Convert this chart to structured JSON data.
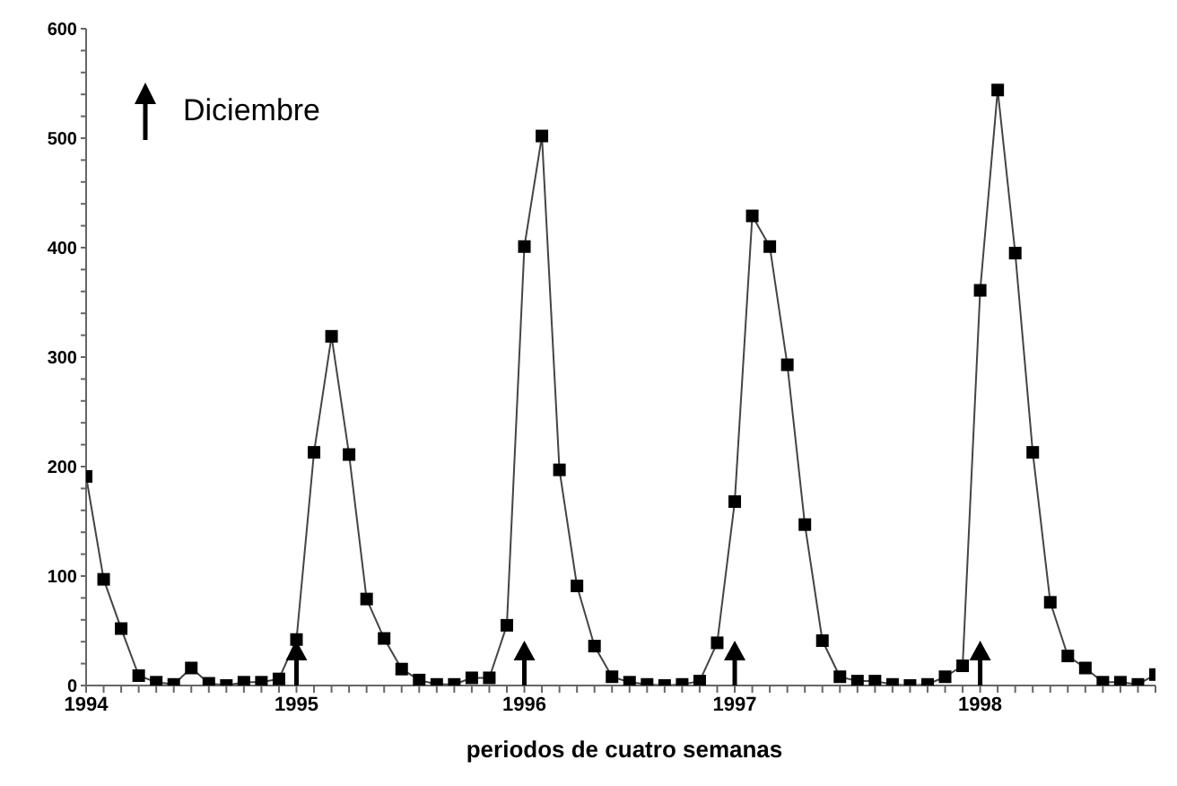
{
  "chart_data": {
    "type": "line",
    "xlabel": "periodos de cuatro semanas",
    "categories": [
      "1994",
      null,
      null,
      null,
      null,
      null,
      null,
      null,
      null,
      null,
      null,
      null,
      "1995",
      null,
      null,
      null,
      null,
      null,
      null,
      null,
      null,
      null,
      null,
      null,
      null,
      "1996",
      null,
      null,
      null,
      null,
      null,
      null,
      null,
      null,
      null,
      null,
      null,
      "1997",
      null,
      null,
      null,
      null,
      null,
      null,
      null,
      null,
      null,
      null,
      null,
      null,
      null,
      "1998",
      null,
      null,
      null,
      null,
      null,
      null,
      null,
      null,
      null,
      null
    ],
    "values": [
      191,
      97,
      52,
      9,
      3,
      1,
      16,
      2,
      0,
      3,
      3,
      6,
      42,
      213,
      319,
      211,
      79,
      43,
      15,
      5,
      1,
      1,
      7,
      7,
      55,
      401,
      502,
      197,
      91,
      36,
      8,
      3,
      1,
      0,
      1,
      4,
      39,
      168,
      429,
      401,
      293,
      147,
      41,
      8,
      4,
      4,
      1,
      0,
      1,
      8,
      18,
      361,
      544,
      395,
      213,
      76,
      27,
      16,
      3,
      3,
      1,
      10
    ],
    "color": "#000000",
    "marker": "square",
    "line_style": "solid",
    "grid": false,
    "ylim": [
      0,
      600
    ],
    "yticks": [
      0,
      {
        "value": 20,
        "label": null
      },
      {
        "value": 40,
        "label": null
      },
      {
        "value": 60,
        "label": null
      },
      {
        "value": 80,
        "label": null
      },
      100,
      {
        "value": 120,
        "label": null
      },
      {
        "value": 140,
        "label": null
      },
      {
        "value": 160,
        "label": null
      },
      {
        "value": 180,
        "label": null
      },
      200,
      {
        "value": 220,
        "label": null
      },
      {
        "value": 240,
        "label": null
      },
      {
        "value": 260,
        "label": null
      },
      {
        "value": 280,
        "label": null
      },
      300,
      {
        "value": 320,
        "label": null
      },
      {
        "value": 340,
        "label": null
      },
      {
        "value": 360,
        "label": null
      },
      {
        "value": 380,
        "label": null
      },
      400,
      {
        "value": 420,
        "label": null
      },
      {
        "value": 440,
        "label": null
      },
      {
        "value": 460,
        "label": null
      },
      {
        "value": 480,
        "label": null
      },
      500,
      {
        "value": 520,
        "label": null
      },
      {
        "value": 540,
        "label": null
      },
      {
        "value": 560,
        "label": null
      },
      {
        "value": 580,
        "label": null
      },
      600
    ],
    "annotations": [
      "Diciembre"
    ]
  }
}
